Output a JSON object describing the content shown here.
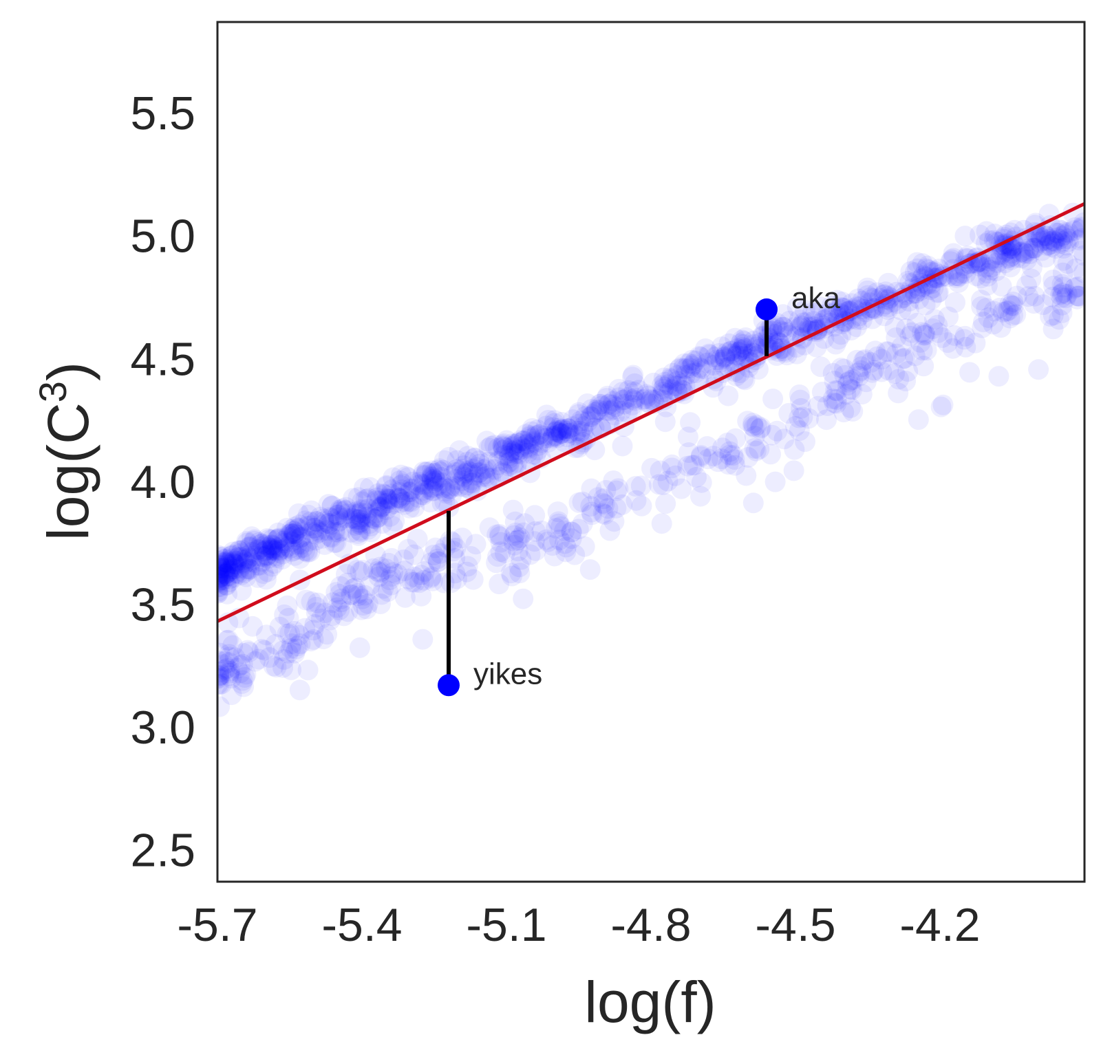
{
  "chart_data": {
    "type": "scatter",
    "xlabel": "log(f)",
    "ylabel_main": "log(C",
    "ylabel_sup": "3",
    "ylabel_close": ")",
    "xlim": [
      -5.7,
      -3.9
    ],
    "ylim": [
      2.37,
      5.87
    ],
    "xticks": [
      "-5.7",
      "-5.4",
      "-5.1",
      "-4.8",
      "-4.5",
      "-4.2"
    ],
    "yticks": [
      "2.5",
      "3.0",
      "3.5",
      "4.0",
      "4.5",
      "5.0",
      "5.5"
    ],
    "grid": false,
    "colors": {
      "points": "#0000ff",
      "fit_line": "#d00c1c",
      "frame": "#262626",
      "stem": "#000000"
    },
    "fit_line": {
      "x": [
        -5.7,
        -3.9
      ],
      "y": [
        3.43,
        5.13
      ]
    },
    "scatter_cloud": {
      "description": "",
      "main_band": [
        [
          -5.7,
          3.62
        ],
        [
          -5.6,
          3.72
        ],
        [
          -5.5,
          3.8
        ],
        [
          -5.4,
          3.88
        ],
        [
          -5.3,
          3.96
        ],
        [
          -5.2,
          4.02
        ],
        [
          -5.1,
          4.1
        ],
        [
          -5.0,
          4.18
        ],
        [
          -4.9,
          4.28
        ],
        [
          -4.8,
          4.36
        ],
        [
          -4.7,
          4.44
        ],
        [
          -4.6,
          4.52
        ],
        [
          -4.5,
          4.6
        ],
        [
          -4.4,
          4.68
        ],
        [
          -4.3,
          4.76
        ],
        [
          -4.2,
          4.84
        ],
        [
          -4.1,
          4.92
        ],
        [
          -4.0,
          4.98
        ],
        [
          -3.9,
          5.02
        ]
      ],
      "lower_band": [
        [
          -5.7,
          3.2
        ],
        [
          -5.6,
          3.3
        ],
        [
          -5.5,
          3.42
        ],
        [
          -5.4,
          3.55
        ],
        [
          -5.3,
          3.62
        ],
        [
          -5.2,
          3.66
        ],
        [
          -5.1,
          3.72
        ],
        [
          -5.0,
          3.82
        ],
        [
          -4.9,
          3.9
        ],
        [
          -4.8,
          3.98
        ],
        [
          -4.7,
          4.06
        ],
        [
          -4.6,
          4.16
        ],
        [
          -4.5,
          4.26
        ],
        [
          -4.4,
          4.4
        ],
        [
          -4.3,
          4.5
        ],
        [
          -4.2,
          4.6
        ],
        [
          -4.1,
          4.68
        ],
        [
          -4.0,
          4.74
        ],
        [
          -3.9,
          4.8
        ]
      ]
    },
    "annotations": [
      {
        "label": "aka",
        "x": -4.56,
        "y": 4.7,
        "fit_y": 4.51
      },
      {
        "label": "yikes",
        "x": -5.22,
        "y": 3.17,
        "fit_y": 3.88
      }
    ]
  }
}
